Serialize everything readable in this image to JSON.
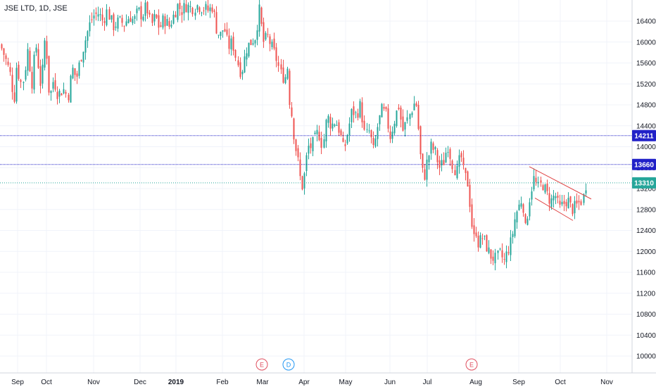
{
  "header": {
    "symbol_title": "JSE LTD, 1D, JSE"
  },
  "colors": {
    "up": "#26a69a",
    "down": "#ef5350",
    "grid": "#f0f3fa",
    "axis_text": "#131722",
    "price_line_blue": "#2121c8",
    "price_line_teal": "#26a69a",
    "trend_line": "#e04444",
    "event_earnings": "#e04f5f",
    "event_dividend": "#2196f3"
  },
  "chart_data": {
    "type": "candlestick",
    "title": "JSE LTD, 1D, JSE",
    "x_tick_labels": [
      "Sep",
      "Oct",
      "Nov",
      "Dec",
      "2019",
      "Feb",
      "Mar",
      "Apr",
      "May",
      "Jun",
      "Jul",
      "Aug",
      "Sep",
      "Oct",
      "Nov"
    ],
    "y_tick_labels": [
      "16400",
      "16000",
      "15600",
      "15200",
      "14800",
      "14400",
      "14000",
      "13600",
      "13200",
      "12800",
      "12400",
      "12000",
      "11600",
      "11200",
      "10800",
      "10400",
      "10000"
    ],
    "ylim": [
      9750,
      16750
    ],
    "grid": true,
    "price_labels": [
      {
        "value": 14211,
        "label": "14211",
        "style": "blue"
      },
      {
        "value": 13660,
        "label": "13660",
        "style": "blue"
      },
      {
        "value": 13310,
        "label": "13310",
        "style": "teal"
      }
    ],
    "event_markers": [
      {
        "label": "E",
        "kind": "earnings",
        "date_label": "Mar"
      },
      {
        "label": "D",
        "kind": "dividend",
        "date_label": "Mar"
      },
      {
        "label": "E",
        "kind": "earnings",
        "date_label": "Aug"
      }
    ],
    "close_path": [
      [
        0,
        15950
      ],
      [
        7,
        15700
      ],
      [
        14,
        15400
      ],
      [
        20,
        14900
      ],
      [
        24,
        15650
      ],
      [
        28,
        15200
      ],
      [
        34,
        15300
      ],
      [
        38,
        15900
      ],
      [
        45,
        15200
      ],
      [
        50,
        16000
      ],
      [
        58,
        15100
      ],
      [
        64,
        16200
      ],
      [
        70,
        14900
      ],
      [
        76,
        15300
      ],
      [
        82,
        15000
      ],
      [
        90,
        15100
      ],
      [
        96,
        14950
      ],
      [
        102,
        15500
      ],
      [
        108,
        15300
      ],
      [
        114,
        15700
      ],
      [
        120,
        16000
      ],
      [
        126,
        16300
      ],
      [
        132,
        16500
      ],
      [
        140,
        16550
      ],
      [
        146,
        16400
      ],
      [
        152,
        16600
      ],
      [
        160,
        16300
      ],
      [
        168,
        16400
      ],
      [
        176,
        16350
      ],
      [
        184,
        16500
      ],
      [
        190,
        16400
      ],
      [
        196,
        16600
      ],
      [
        202,
        16500
      ],
      [
        208,
        16700
      ],
      [
        214,
        16300
      ],
      [
        220,
        16500
      ],
      [
        226,
        16250
      ],
      [
        232,
        16450
      ],
      [
        240,
        16300
      ],
      [
        246,
        16500
      ],
      [
        252,
        16700
      ],
      [
        258,
        16600
      ],
      [
        264,
        16700
      ],
      [
        272,
        16650
      ],
      [
        280,
        16700
      ],
      [
        288,
        16650
      ],
      [
        296,
        16600
      ],
      [
        302,
        16700
      ],
      [
        306,
        16300
      ],
      [
        312,
        16100
      ],
      [
        318,
        16300
      ],
      [
        324,
        15900
      ],
      [
        330,
        16000
      ],
      [
        336,
        15650
      ],
      [
        342,
        15400
      ],
      [
        350,
        15900
      ],
      [
        356,
        16000
      ],
      [
        362,
        16100
      ],
      [
        368,
        16600
      ],
      [
        374,
        16000
      ],
      [
        380,
        16100
      ],
      [
        386,
        15900
      ],
      [
        392,
        15700
      ],
      [
        398,
        15400
      ],
      [
        404,
        15300
      ],
      [
        408,
        15550
      ],
      [
        410,
        14950
      ],
      [
        414,
        14600
      ],
      [
        418,
        14100
      ],
      [
        422,
        13800
      ],
      [
        426,
        13400
      ],
      [
        430,
        13200
      ],
      [
        434,
        13700
      ],
      [
        438,
        14000
      ],
      [
        442,
        14000
      ],
      [
        446,
        14100
      ],
      [
        452,
        14300
      ],
      [
        458,
        14000
      ],
      [
        464,
        14600
      ],
      [
        470,
        14400
      ],
      [
        476,
        14500
      ],
      [
        482,
        14300
      ],
      [
        488,
        13900
      ],
      [
        494,
        14300
      ],
      [
        500,
        14700
      ],
      [
        506,
        14600
      ],
      [
        512,
        14800
      ],
      [
        518,
        14200
      ],
      [
        524,
        14300
      ],
      [
        530,
        13900
      ],
      [
        536,
        14400
      ],
      [
        542,
        14700
      ],
      [
        548,
        14600
      ],
      [
        554,
        14200
      ],
      [
        560,
        14500
      ],
      [
        566,
        14800
      ],
      [
        572,
        14300
      ],
      [
        578,
        14500
      ],
      [
        584,
        14700
      ],
      [
        590,
        14900
      ],
      [
        594,
        14300
      ],
      [
        598,
        13600
      ],
      [
        602,
        13400
      ],
      [
        606,
        13700
      ],
      [
        612,
        14000
      ],
      [
        618,
        13900
      ],
      [
        624,
        13600
      ],
      [
        630,
        13700
      ],
      [
        636,
        14050
      ],
      [
        642,
        13700
      ],
      [
        648,
        13500
      ],
      [
        654,
        13850
      ],
      [
        658,
        13500
      ],
      [
        664,
        13300
      ],
      [
        668,
        12800
      ],
      [
        672,
        12200
      ],
      [
        676,
        12400
      ],
      [
        680,
        12100
      ],
      [
        684,
        12300
      ],
      [
        688,
        12200
      ],
      [
        694,
        12000
      ],
      [
        698,
        11900
      ],
      [
        704,
        11850
      ],
      [
        710,
        11950
      ],
      [
        716,
        11800
      ],
      [
        720,
        12000
      ],
      [
        726,
        12200
      ],
      [
        732,
        12700
      ],
      [
        738,
        12900
      ],
      [
        742,
        13050
      ],
      [
        746,
        12400
      ],
      [
        752,
        13000
      ],
      [
        758,
        13400
      ],
      [
        764,
        13200
      ],
      [
        770,
        13300
      ],
      [
        776,
        13100
      ],
      [
        782,
        12950
      ],
      [
        788,
        13100
      ],
      [
        794,
        12800
      ],
      [
        800,
        12900
      ],
      [
        806,
        13000
      ],
      [
        812,
        12800
      ],
      [
        818,
        12850
      ],
      [
        824,
        12950
      ],
      [
        828,
        13000
      ],
      [
        832,
        13310
      ]
    ],
    "trendlines": [
      {
        "from": [
          752,
          13620
        ],
        "to": [
          840,
          13000
        ]
      },
      {
        "from": [
          760,
          13020
        ],
        "to": [
          814,
          12590
        ]
      }
    ]
  }
}
